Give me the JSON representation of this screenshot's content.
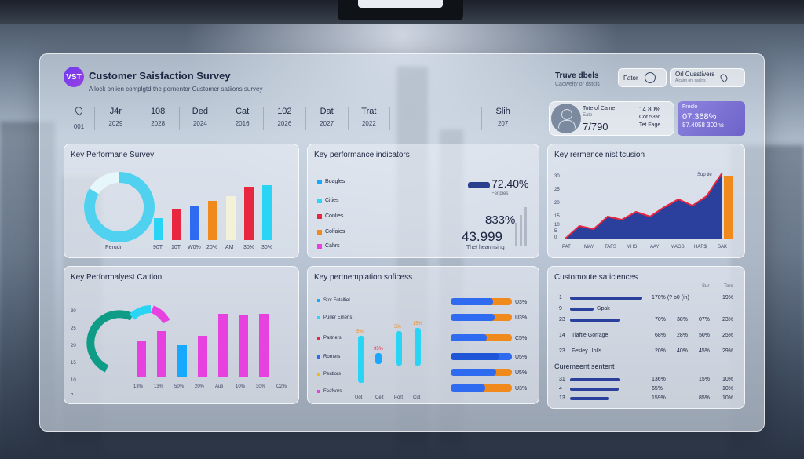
{
  "header": {
    "logo_text": "VST",
    "title": "Customer Saisfaction Survey",
    "subtitle": "A lock onlien complgtd the pornentor Customer satiions survey",
    "right_title": "Truve dbels",
    "right_sub": "Caoweity or dstcls",
    "filter_label": "Fator",
    "location_label": "Orl Cusstivers",
    "location_sub": "Alcaim onl saslns"
  },
  "stats": [
    {
      "value": "",
      "label": "001"
    },
    {
      "value": "J4r",
      "label": "2029"
    },
    {
      "value": "108",
      "label": "2028"
    },
    {
      "value": "Ded",
      "label": "2024"
    },
    {
      "value": "Cat",
      "label": "2016"
    },
    {
      "value": "102",
      "label": "2026"
    },
    {
      "value": "Dat",
      "label": "2027"
    },
    {
      "value": "Trat",
      "label": "2022"
    },
    {
      "value": "Slih",
      "label": "207"
    }
  ],
  "user_card": {
    "line1": "Tote of Caine",
    "line2": "Eate",
    "value": "7/790",
    "r1": "14.80%",
    "r2": "Cot 53%",
    "r3": "Tet Fage"
  },
  "purple_card": {
    "label": "Froclo",
    "value": "07.368%",
    "sub": "87.4058 300ns"
  },
  "card1": {
    "title": "Key Performane Survey",
    "donut_label": "Perudr",
    "ticks": [
      "90T",
      "10T",
      "W0%",
      "20%",
      "AM",
      "30%",
      "30%"
    ]
  },
  "card2": {
    "title": "Key performance indicators",
    "legend": [
      {
        "label": "Boagles",
        "color": "#17a8ff"
      },
      {
        "label": "Cities",
        "color": "#2ad4f5"
      },
      {
        "label": "Conlies",
        "color": "#e8263f"
      },
      {
        "label": "Colfaies",
        "color": "#f08a1c"
      },
      {
        "label": "Cahrs",
        "color": "#e742e0"
      }
    ],
    "kpi1": "72.40%",
    "kpi1_sub": "Fenpies",
    "kpi2": "833%",
    "kpi3": "43.999",
    "kpi3_sub": "Thet hearmsing"
  },
  "card3": {
    "title": "Key rermence nist tcusion",
    "corner": "Sup tle",
    "yticks": [
      "30",
      "25",
      "20",
      "15",
      "10",
      "5",
      "0"
    ],
    "xticks": [
      "PAT",
      "MAY",
      "TAFS",
      "MHS",
      "AAY",
      "MAGS",
      "HAR$",
      "SAK"
    ]
  },
  "card4": {
    "title": "Key Performalyest Cattion",
    "yticks": [
      "30",
      "25",
      "20",
      "15",
      "10",
      "5"
    ],
    "xticks": [
      "13%",
      "13%",
      "50%",
      "20%",
      "Auli",
      "10%",
      "30%",
      "C2%"
    ]
  },
  "card5": {
    "title": "Key pertnemplation soficess",
    "legend": [
      {
        "label": "Stor Fotalfiel",
        "color": "#17a8ff"
      },
      {
        "label": "Purler Emeris",
        "color": "#2ad4f5"
      },
      {
        "label": "Partners",
        "color": "#e8263f"
      },
      {
        "label": "Rorners",
        "color": "#2e6bf0"
      },
      {
        "label": "Peatlors",
        "color": "#f0b81c"
      },
      {
        "label": "Feafsors",
        "color": "#e742e0"
      }
    ],
    "bar_labels": [
      "5%",
      "95%",
      "5%",
      "15%"
    ],
    "xticks": [
      "Uot",
      "Celt",
      "Port",
      "Cut"
    ],
    "pct": [
      "U3%",
      "U3%",
      "C5%",
      "U5%",
      "U5%",
      "U3%"
    ]
  },
  "card6": {
    "title": "Customoute saticiences",
    "col_heads": [
      "Sur",
      "Tere"
    ],
    "rows": [
      {
        "idx": "1",
        "name": "",
        "c1": "170% (? b0 (in)",
        "c2": "",
        "c3": "",
        "c4": "19%"
      },
      {
        "idx": "9",
        "name": "Gpak",
        "c1": "",
        "c2": "",
        "c3": "",
        "c4": ""
      },
      {
        "idx": "23",
        "name": "",
        "c1": "70%",
        "c2": "38%",
        "c3": "07%",
        "c4": "23%"
      },
      {
        "idx": "14",
        "name": "Tiaftie Gorrage",
        "c1": "68%",
        "c2": "28%",
        "c3": "50%",
        "c4": "25%"
      },
      {
        "idx": "23",
        "name": "Fesley Uolls",
        "c1": "20%",
        "c2": "40%",
        "c3": "45%",
        "c4": "29%"
      }
    ],
    "sub_title": "Curemeent sentent",
    "rows2": [
      {
        "idx": "31",
        "c1": "136%",
        "c2": "",
        "c3": "15%",
        "c4": "10%"
      },
      {
        "idx": "4",
        "c1": "65%",
        "c2": "",
        "c3": "",
        "c4": "10%"
      },
      {
        "idx": "13",
        "c1": "159%",
        "c2": "",
        "c3": "85%",
        "c4": "10%"
      }
    ]
  }
}
